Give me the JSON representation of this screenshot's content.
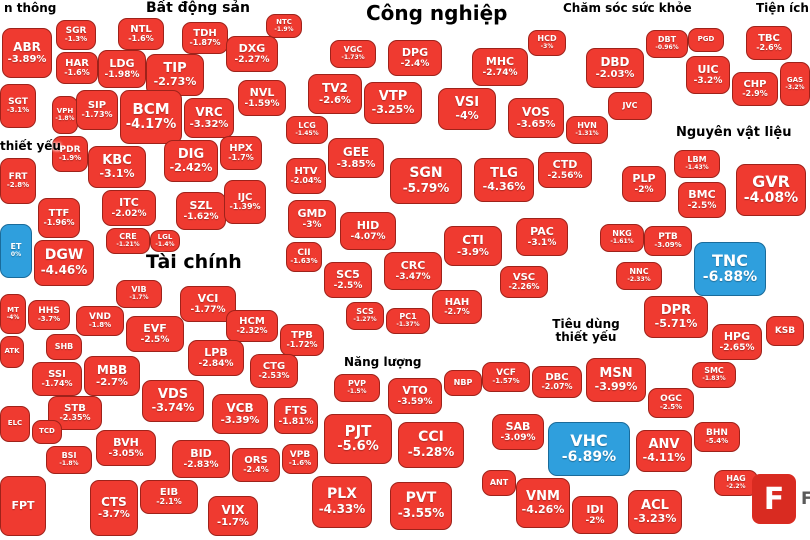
{
  "colors": {
    "decline_red": "#ef3a30",
    "decline_border": "#9e221a",
    "floor_blue": "#2f9fdd",
    "floor_border": "#1a6b9a",
    "label_text": "#000000",
    "background": "#ffffff",
    "watermark_red": "#d92b21"
  },
  "watermark": {
    "text": "Foa",
    "icon_letter": "F"
  },
  "chart_data": {
    "type": "treemap",
    "title": "",
    "legend": "cell color = session change; red = decline, blue = floor price",
    "groups": [
      {
        "id": "cong-nghe-thong-tin",
        "label": "n thông",
        "cells": [
          {
            "t": "ABR",
            "p": "-3.89%"
          },
          {
            "t": "SGT",
            "p": "-3.1%"
          }
        ]
      },
      {
        "id": "tieu-dung-left",
        "label": "thiết yếu",
        "cells": [
          {
            "t": "FRT",
            "p": "-2.8%"
          },
          {
            "t": "TTF",
            "p": "-1.96%"
          },
          {
            "t": "DGW",
            "p": "-4.46%"
          },
          {
            "t": "ET",
            "p": "0%",
            "f": true
          },
          {
            "t": "MT",
            "p": "-4%"
          }
        ]
      },
      {
        "id": "bat-dong-san",
        "label": "Bất động sản",
        "cells": [
          {
            "t": "SGR",
            "p": "-1.3%"
          },
          {
            "t": "NTL",
            "p": "-1.6%"
          },
          {
            "t": "TDH",
            "p": "-1.87%"
          },
          {
            "t": "DXG",
            "p": "-2.27%"
          },
          {
            "t": "NTC",
            "p": "-1.9%"
          },
          {
            "t": "HAR",
            "p": "-1.6%"
          },
          {
            "t": "LDG",
            "p": "-1.98%"
          },
          {
            "t": "TIP",
            "p": "-2.73%"
          },
          {
            "t": "VPH",
            "p": "-1.8%"
          },
          {
            "t": "SIP",
            "p": "-1.73%"
          },
          {
            "t": "BCM",
            "p": "-4.17%"
          },
          {
            "t": "VRC",
            "p": "-3.32%"
          },
          {
            "t": "NVL",
            "p": "-1.59%"
          },
          {
            "t": "PDR",
            "p": "-1.9%"
          },
          {
            "t": "KBC",
            "p": "-3.1%"
          },
          {
            "t": "DIG",
            "p": "-2.42%"
          },
          {
            "t": "HPX",
            "p": "-1.7%"
          },
          {
            "t": "ITC",
            "p": "-2.02%"
          },
          {
            "t": "CRE",
            "p": "-1.21%"
          },
          {
            "t": "SZL",
            "p": "-1.62%"
          },
          {
            "t": "LGL",
            "p": "-1.4%"
          },
          {
            "t": "IJC",
            "p": "-1.39%"
          }
        ]
      },
      {
        "id": "tai-chinh",
        "label": "Tài chính",
        "cells": [
          {
            "t": "VIB",
            "p": "-1.7%"
          },
          {
            "t": "VND",
            "p": "-1.8%"
          },
          {
            "t": "VCI",
            "p": "-1.77%"
          },
          {
            "t": "EVF",
            "p": "-2.5%"
          },
          {
            "t": "HCM",
            "p": "-2.32%"
          },
          {
            "t": "LPB",
            "p": "-2.84%"
          },
          {
            "t": "TPB",
            "p": "-1.72%"
          },
          {
            "t": "MBB",
            "p": "-2.7%"
          },
          {
            "t": "CTG",
            "p": "-2.53%"
          },
          {
            "t": "VDS",
            "p": "-3.74%"
          },
          {
            "t": "VCB",
            "p": "-3.39%"
          },
          {
            "t": "FTS",
            "p": "-1.81%"
          },
          {
            "t": "BVH",
            "p": "-3.05%"
          },
          {
            "t": "BID",
            "p": "-2.83%"
          },
          {
            "t": "ORS",
            "p": "-2.4%"
          },
          {
            "t": "VPB",
            "p": "-1.6%"
          },
          {
            "t": "EIB",
            "p": "-2.1%"
          },
          {
            "t": "CTS",
            "p": "-3.7%"
          },
          {
            "t": "VIX",
            "p": "-1.7%"
          },
          {
            "t": "HHS",
            "p": "-3.7%"
          },
          {
            "t": "SHB",
            "p": ""
          },
          {
            "t": "ATK",
            "p": ""
          },
          {
            "t": "SSI",
            "p": "-1.74%"
          },
          {
            "t": "STB",
            "p": "-2.35%"
          },
          {
            "t": "ELC",
            "p": ""
          },
          {
            "t": "TCD",
            "p": ""
          },
          {
            "t": "BSI",
            "p": "-1.8%"
          },
          {
            "t": "FPT",
            "p": ""
          }
        ]
      },
      {
        "id": "cong-nghiep",
        "label": "Công nghiệp",
        "cells": [
          {
            "t": "VGC",
            "p": "-1.73%"
          },
          {
            "t": "DPG",
            "p": "-2.4%"
          },
          {
            "t": "MHC",
            "p": "-2.74%"
          },
          {
            "t": "HCD",
            "p": "-3%"
          },
          {
            "t": "TV2",
            "p": "-2.6%"
          },
          {
            "t": "VTP",
            "p": "-3.25%"
          },
          {
            "t": "VSI",
            "p": "-4%"
          },
          {
            "t": "VOS",
            "p": "-3.65%"
          },
          {
            "t": "HVN",
            "p": "-1.31%"
          },
          {
            "t": "LCG",
            "p": "-1.45%"
          },
          {
            "t": "GEE",
            "p": "-3.85%"
          },
          {
            "t": "SGN",
            "p": "-5.79%"
          },
          {
            "t": "TLG",
            "p": "-4.36%"
          },
          {
            "t": "CTD",
            "p": "-2.56%"
          },
          {
            "t": "HTV",
            "p": "-2.04%"
          },
          {
            "t": "GMD",
            "p": "-3%"
          },
          {
            "t": "HID",
            "p": "-4.07%"
          },
          {
            "t": "CTI",
            "p": "-3.9%"
          },
          {
            "t": "PAC",
            "p": "-3.1%"
          },
          {
            "t": "CII",
            "p": "-1.63%"
          },
          {
            "t": "SC5",
            "p": "-2.5%"
          },
          {
            "t": "CRC",
            "p": "-3.47%"
          },
          {
            "t": "HAH",
            "p": "-2.7%"
          },
          {
            "t": "VSC",
            "p": "-2.26%"
          },
          {
            "t": "SCS",
            "p": "-1.27%"
          },
          {
            "t": "PC1",
            "p": "-1.37%"
          }
        ]
      },
      {
        "id": "cham-soc-suc-khoe",
        "label": "Chăm sóc sức khỏe",
        "cells": [
          {
            "t": "DBD",
            "p": "-2.03%"
          },
          {
            "t": "DBT",
            "p": "-0.96%"
          },
          {
            "t": "JVC",
            "p": ""
          }
        ]
      },
      {
        "id": "tien-ich",
        "label": "Tiện ích",
        "cells": [
          {
            "t": "PGD",
            "p": ""
          },
          {
            "t": "TBC",
            "p": "-2.6%"
          },
          {
            "t": "UIC",
            "p": "-3.2%"
          },
          {
            "t": "CHP",
            "p": "-2.9%"
          },
          {
            "t": "GAS",
            "p": "-3.2%"
          }
        ]
      },
      {
        "id": "nguyen-vat-lieu",
        "label": "Nguyên vật liệu",
        "cells": [
          {
            "t": "LBM",
            "p": "-1.43%"
          },
          {
            "t": "PLP",
            "p": "-2%"
          },
          {
            "t": "BMC",
            "p": "-2.5%"
          },
          {
            "t": "GVR",
            "p": "-4.08%"
          },
          {
            "t": "NKG",
            "p": "-1.61%"
          },
          {
            "t": "PTB",
            "p": "-3.09%"
          },
          {
            "t": "TNC",
            "p": "-6.88%",
            "f": true
          },
          {
            "t": "NNC",
            "p": "-2.33%"
          },
          {
            "t": "DPR",
            "p": "-5.71%"
          },
          {
            "t": "HPG",
            "p": "-2.65%"
          },
          {
            "t": "KSB",
            "p": ""
          }
        ]
      },
      {
        "id": "tieu-dung-thiet-yeu",
        "label": "Tiêu dùng\nthiết yếu",
        "cells": [
          {
            "t": "VCF",
            "p": "-1.57%"
          },
          {
            "t": "DBC",
            "p": "-2.07%"
          },
          {
            "t": "MSN",
            "p": "-3.99%"
          },
          {
            "t": "SMC",
            "p": "-1.83%"
          },
          {
            "t": "OGC",
            "p": "-2.5%"
          },
          {
            "t": "SAB",
            "p": "-3.09%"
          },
          {
            "t": "VHC",
            "p": "-6.89%",
            "f": true
          },
          {
            "t": "ANV",
            "p": "-4.11%"
          },
          {
            "t": "BHN",
            "p": "-5.4%"
          },
          {
            "t": "VNM",
            "p": "-4.26%"
          },
          {
            "t": "ANT",
            "p": ""
          },
          {
            "t": "IDI",
            "p": "-2%"
          },
          {
            "t": "ACL",
            "p": "-3.23%"
          },
          {
            "t": "HAG",
            "p": "-2.2%"
          }
        ]
      },
      {
        "id": "nang-luong",
        "label": "Năng lượng",
        "cells": [
          {
            "t": "PVP",
            "p": "-1.5%"
          },
          {
            "t": "NBP",
            "p": ""
          },
          {
            "t": "VTO",
            "p": "-3.59%"
          },
          {
            "t": "PJT",
            "p": "-5.6%"
          },
          {
            "t": "CCI",
            "p": "-5.28%"
          },
          {
            "t": "PLX",
            "p": "-4.33%"
          },
          {
            "t": "PVT",
            "p": "-3.55%"
          }
        ]
      }
    ]
  }
}
